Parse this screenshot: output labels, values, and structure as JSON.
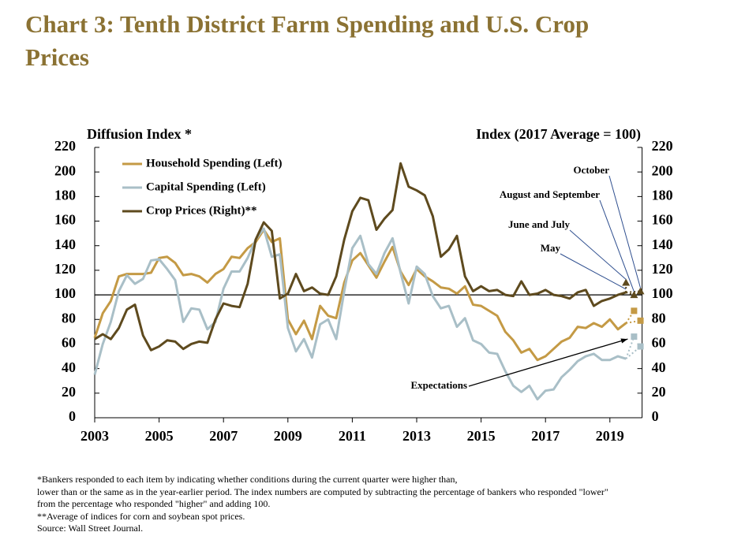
{
  "chart_data": {
    "type": "line",
    "title": "Chart 3: Tenth District Farm Spending and U.S. Crop Prices",
    "y_label": "Diffusion Index *",
    "y2_label": "Index (2017 Average = 100)",
    "xlim": [
      2003,
      2020
    ],
    "xticks": [
      2003,
      2005,
      2007,
      2009,
      2011,
      2013,
      2015,
      2017,
      2019
    ],
    "ylim": [
      0,
      220
    ],
    "yticks": [
      0,
      20,
      40,
      60,
      80,
      100,
      120,
      140,
      160,
      180,
      200,
      220
    ],
    "y2lim": [
      0,
      220
    ],
    "y2ticks": [
      0,
      20,
      40,
      60,
      80,
      100,
      120,
      140,
      160,
      180,
      200,
      220
    ],
    "reference_line": 100,
    "legend": "upper left",
    "x": [
      2003,
      2003.25,
      2003.5,
      2003.75,
      2004,
      2004.25,
      2004.5,
      2004.75,
      2005,
      2005.25,
      2005.5,
      2005.75,
      2006,
      2006.25,
      2006.5,
      2006.75,
      2007,
      2007.25,
      2007.5,
      2007.75,
      2008,
      2008.25,
      2008.5,
      2008.75,
      2009,
      2009.25,
      2009.5,
      2009.75,
      2010,
      2010.25,
      2010.5,
      2010.75,
      2011,
      2011.25,
      2011.5,
      2011.75,
      2012,
      2012.25,
      2012.5,
      2012.75,
      2013,
      2013.25,
      2013.5,
      2013.75,
      2014,
      2014.25,
      2014.5,
      2014.75,
      2015,
      2015.25,
      2015.5,
      2015.75,
      2016,
      2016.25,
      2016.5,
      2016.75,
      2017,
      2017.25,
      2017.5,
      2017.75,
      2018,
      2018.25,
      2018.5,
      2018.75,
      2019,
      2019.25,
      2019.5
    ],
    "series": [
      {
        "name": "Household Spending (Left)",
        "color": "#c49a45",
        "axis": "y",
        "marker": "square",
        "values": [
          65,
          85,
          95,
          115,
          117,
          117,
          117,
          118,
          130,
          131,
          126,
          116,
          117,
          115,
          110,
          117,
          121,
          131,
          130,
          138,
          143,
          153,
          143,
          146,
          80,
          68,
          79,
          64,
          91,
          83,
          81,
          110,
          128,
          134,
          124,
          114,
          127,
          139,
          119,
          108,
          121,
          115,
          111,
          106,
          105,
          101,
          107,
          92,
          91,
          87,
          83,
          70,
          63,
          53,
          56,
          47,
          50,
          56,
          62,
          65,
          74,
          73,
          77,
          74,
          80,
          72,
          77
        ],
        "expectations": {
          "x": [
            2019.75,
            2019.95
          ],
          "values": [
            87,
            79
          ]
        }
      },
      {
        "name": "Capital Spending (Left)",
        "color": "#a9bfc7",
        "axis": "y",
        "marker": "square",
        "values": [
          35,
          60,
          78,
          103,
          116,
          109,
          113,
          128,
          129,
          121,
          112,
          78,
          89,
          88,
          72,
          78,
          105,
          119,
          119,
          130,
          145,
          154,
          131,
          133,
          73,
          54,
          64,
          49,
          76,
          80,
          64,
          103,
          138,
          148,
          125,
          117,
          134,
          146,
          118,
          93,
          123,
          117,
          99,
          89,
          91,
          74,
          81,
          63,
          60,
          53,
          52,
          38,
          26,
          21,
          26,
          15,
          22,
          23,
          33,
          39,
          46,
          50,
          52,
          47,
          47,
          50,
          48
        ],
        "expectations": {
          "x": [
            2019.75,
            2019.95
          ],
          "values": [
            66,
            58
          ]
        }
      },
      {
        "name": "Crop Prices (Right)**",
        "color": "#5e4a1e",
        "axis": "y2",
        "marker": "triangle",
        "values": [
          64,
          68,
          64,
          73,
          88,
          92,
          67,
          55,
          58,
          63,
          62,
          56,
          60,
          62,
          61,
          80,
          93,
          91,
          90,
          109,
          145,
          159,
          152,
          97,
          101,
          117,
          103,
          106,
          101,
          100,
          115,
          145,
          168,
          179,
          177,
          153,
          162,
          169,
          207,
          188,
          185,
          181,
          164,
          131,
          137,
          148,
          115,
          103,
          107,
          103,
          104,
          100,
          99,
          111,
          100,
          101,
          104,
          100,
          99,
          97,
          102,
          104,
          91,
          95,
          97,
          100,
          102
        ],
        "expectations": {
          "x": [
            2019.5,
            2019.75,
            2019.95
          ],
          "values": [
            110,
            100,
            103
          ]
        }
      }
    ],
    "annotations": [
      "May",
      "June and July",
      "August and September",
      "October"
    ],
    "expectations_label": "Expectations",
    "footnotes": [
      "*Bankers responded to each item by indicating whether conditions during the current quarter were higher than,",
      "lower than or the same as in the year-earlier period.  The index numbers are computed by subtracting the percentage of bankers who responded \"lower\"",
      "from the percentage who responded \"higher\" and adding 100.",
      "**Average of indices for corn and soybean spot prices.",
      "Source: Wall Street Journal."
    ]
  }
}
